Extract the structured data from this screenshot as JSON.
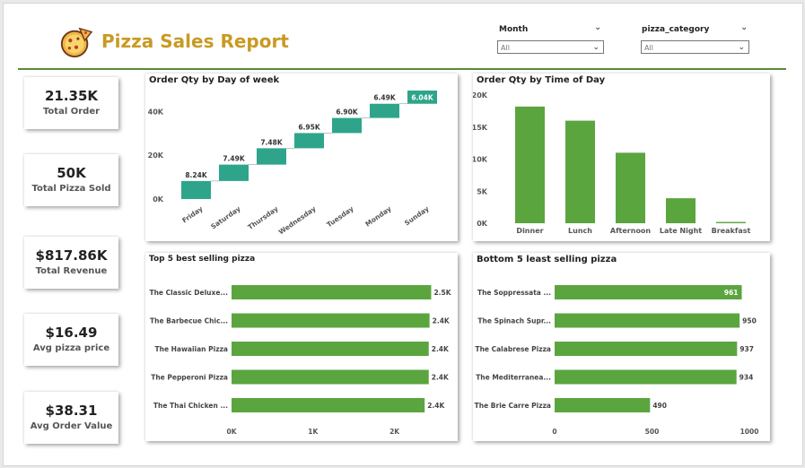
{
  "header": {
    "title": "Pizza Sales Report",
    "logo_icon": "pizza-icon",
    "slicers": [
      {
        "label": "Month",
        "value": "All"
      },
      {
        "label": "pizza_category",
        "value": "All"
      }
    ]
  },
  "kpis": [
    {
      "value": "21.35K",
      "label": "Total Order"
    },
    {
      "value": "50K",
      "label": "Total Pizza Sold"
    },
    {
      "value": "$817.86K",
      "label": "Total Revenue"
    },
    {
      "value": "$16.49",
      "label": "Avg pizza price"
    },
    {
      "value": "$38.31",
      "label": "Avg Order Value"
    }
  ],
  "colors": {
    "accent": "#5ba53f",
    "teal": "#2ea58a",
    "title": "#c99a23",
    "rule": "#5a8a3c"
  },
  "chart_data": [
    {
      "type": "bar",
      "title": "Order Qty by Day of week",
      "categories": [
        "Friday",
        "Saturday",
        "Thursday",
        "Wednesday",
        "Tuesday",
        "Monday",
        "Sunday"
      ],
      "values": [
        8.24,
        7.49,
        7.48,
        6.95,
        6.9,
        6.49,
        6.04
      ],
      "labels": [
        "8.24K",
        "7.49K",
        "7.48K",
        "6.95K",
        "6.90K",
        "6.49K",
        "6.04K"
      ],
      "unit": "K",
      "ylim": [
        0,
        50
      ],
      "yticks": [
        "0K",
        "20K",
        "40K"
      ],
      "style": "waterfall"
    },
    {
      "type": "bar",
      "title": "Order Qty by Time of Day",
      "categories": [
        "Dinner",
        "Lunch",
        "Afternoon",
        "Late Night",
        "Breakfast"
      ],
      "values": [
        18.2,
        16.0,
        11.0,
        3.9,
        0.2
      ],
      "ylim": [
        0,
        20
      ],
      "yticks": [
        "0K",
        "5K",
        "10K",
        "15K",
        "20K"
      ]
    },
    {
      "type": "bar",
      "orientation": "horizontal",
      "title": "Top 5 best selling pizza",
      "categories": [
        "The Classic Deluxe...",
        "The Barbecue Chic...",
        "The Hawaiian Pizza",
        "The Pepperoni Pizza",
        "The Thai Chicken ..."
      ],
      "values": [
        2.45,
        2.43,
        2.42,
        2.42,
        2.37
      ],
      "labels": [
        "2.5K",
        "2.4K",
        "2.4K",
        "2.4K",
        "2.4K"
      ],
      "xlim": [
        0,
        2.5
      ],
      "xticks": [
        "0K",
        "1K",
        "2K"
      ]
    },
    {
      "type": "bar",
      "orientation": "horizontal",
      "title": "Bottom 5 least selling pizza",
      "categories": [
        "The Soppressata ...",
        "The Spinach Supr...",
        "The Calabrese Pizza",
        "The Mediterranea...",
        "The Brie Carre Pizza"
      ],
      "values": [
        961,
        950,
        937,
        934,
        490
      ],
      "labels": [
        "961",
        "950",
        "937",
        "934",
        "490"
      ],
      "xlim": [
        0,
        1000
      ],
      "xticks": [
        "0",
        "500",
        "1000"
      ]
    }
  ]
}
